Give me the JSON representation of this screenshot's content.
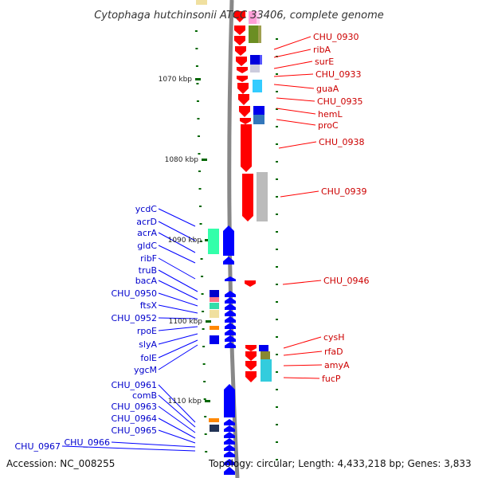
{
  "title": "Cytophaga hutchinsonii ATCC 33406, complete genome",
  "footer": {
    "accession": "Accession: NC_008255",
    "topology": "Topology: circular; Length: 4,433,218 bp; Genes: 3,833"
  },
  "ruler": [
    "1070 kbp",
    "1080 kbp",
    "1090 kbp",
    "1100 kbp",
    "1110 kbp"
  ],
  "colors": {
    "forward": "#ff0000",
    "reverse": "#0000ff",
    "backbone": "#888888",
    "tick": "#006600"
  },
  "forward_genes": [
    "CHU_0930",
    "ribA",
    "surE",
    "CHU_0933",
    "guaA",
    "CHU_0935",
    "hemL",
    "proC",
    "CHU_0938",
    "CHU_0939",
    "CHU_0946",
    "cysH",
    "rfaD",
    "amyA",
    "fucP"
  ],
  "reverse_genes": [
    "ycdC",
    "acrD",
    "acrA",
    "gldC",
    "ribF",
    "truB",
    "bacA",
    "CHU_0950",
    "ftsX",
    "CHU_0952",
    "rpoE",
    "slyA",
    "folE",
    "ygcM",
    "CHU_0961",
    "comB",
    "CHU_0963",
    "CHU_0964",
    "CHU_0965",
    "CHU_0966",
    "CHU_0967"
  ]
}
